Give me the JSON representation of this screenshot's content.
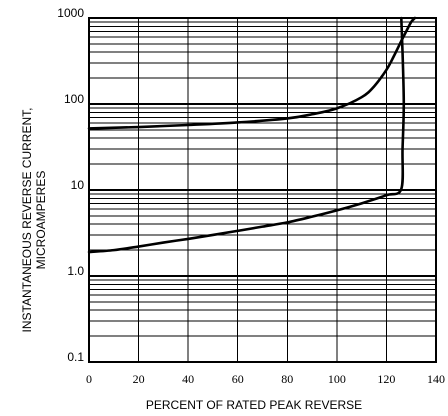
{
  "chart_data": {
    "type": "line",
    "title": "",
    "xlabel": "PERCENT OF RATED PEAK REVERSE",
    "ylabel_lines": [
      "INSTANTANEOUS  REVERSE CURRENT,",
      "MICROAMPERES"
    ],
    "x_ticks": [
      0,
      20,
      40,
      60,
      80,
      100,
      120,
      140
    ],
    "x_tick_labels": [
      "0",
      "20",
      "40",
      "60",
      "80",
      "100",
      "120",
      "140"
    ],
    "y_ticks": [
      0.1,
      1,
      10,
      100,
      1000
    ],
    "y_tick_labels": [
      "0.1",
      "1.0",
      "10",
      "100",
      "1000"
    ],
    "xlim": [
      0,
      140
    ],
    "ylim": [
      0.1,
      1000
    ],
    "y_scale": "log",
    "grid": true,
    "series": [
      {
        "x": [
          0,
          20,
          40,
          60,
          80,
          90,
          100,
          110,
          115,
          120,
          123,
          126,
          128,
          130,
          131.5
        ],
        "y": [
          52,
          54,
          57,
          61,
          68,
          76,
          89,
          120,
          160,
          250,
          360,
          540,
          700,
          900,
          1000
        ]
      },
      {
        "x": [
          0,
          10,
          20,
          30,
          40,
          50,
          60,
          70,
          80,
          90,
          100,
          110,
          120,
          126,
          126.5,
          127,
          126.5,
          126
        ],
        "y": [
          1.9,
          2.0,
          2.2,
          2.45,
          2.7,
          3.0,
          3.35,
          3.75,
          4.2,
          4.9,
          5.8,
          7.0,
          8.7,
          10.3,
          30,
          100,
          400,
          1000
        ]
      }
    ]
  }
}
